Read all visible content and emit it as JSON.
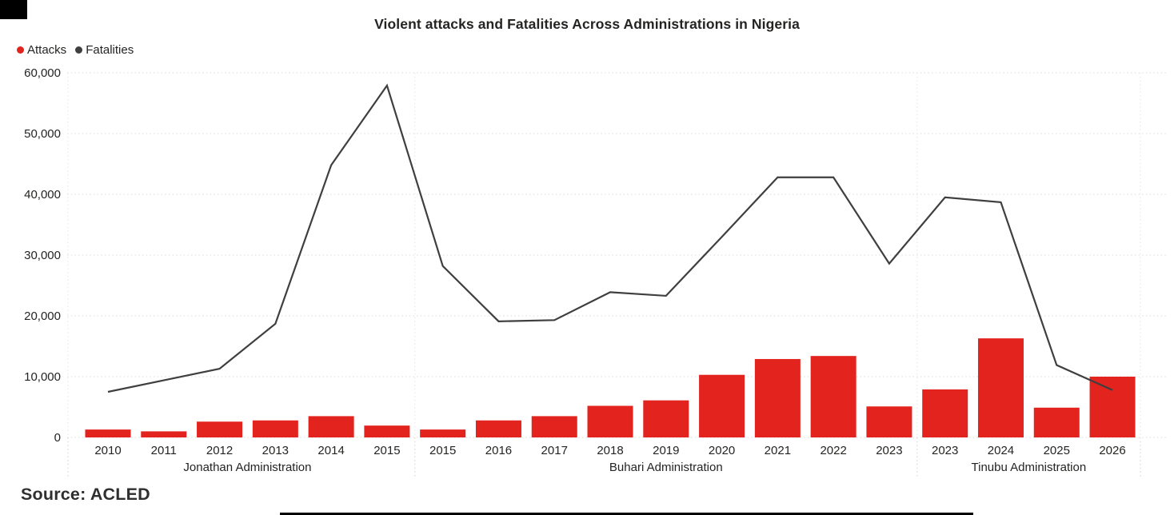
{
  "title": "Violent attacks and Fatalities Across Administrations in Nigeria",
  "source": "Source: ACLED",
  "legend": {
    "items": [
      {
        "label": "Attacks",
        "color": "#E2231E"
      },
      {
        "label": "Fatalities",
        "color": "#3F3F3F"
      }
    ]
  },
  "colors": {
    "bar_red": "#E2231E",
    "line_dark": "#3F3F3F",
    "text_dark": "#252423",
    "gridline": "#DBDBDB",
    "separator": "#E4E4E4",
    "separator_axis": "#CFCFCF"
  },
  "chart_data": {
    "type": "combo-bar-line",
    "title": "Violent attacks and Fatalities Across Administrations in Nigeria",
    "xlabel": "",
    "ylabel": "",
    "ylim": [
      0,
      60000
    ],
    "ytick_values": [
      0,
      10000,
      20000,
      30000,
      40000,
      50000,
      60000
    ],
    "ytick_labels": [
      "0",
      "10,000",
      "20,000",
      "30,000",
      "40,000",
      "50,000",
      "60,000"
    ],
    "grid": "horizontal-dotted",
    "legend_position": "top-left",
    "categories": [
      "2010",
      "2011",
      "2012",
      "2013",
      "2014",
      "2015",
      "2015",
      "2016",
      "2017",
      "2018",
      "2019",
      "2020",
      "2021",
      "2022",
      "2023",
      "2023",
      "2024",
      "2025",
      "2026"
    ],
    "groups": [
      {
        "label": "Jonathan Administration",
        "start": 0,
        "end": 5
      },
      {
        "label": "Buhari Administration",
        "start": 6,
        "end": 14
      },
      {
        "label": "Tinubu Administration",
        "start": 15,
        "end": 18
      }
    ],
    "series": [
      {
        "name": "Attacks",
        "type": "bar",
        "color": "#E2231E",
        "values": [
          1300,
          1000,
          2600,
          2800,
          3500,
          1950,
          1300,
          2800,
          3500,
          5200,
          6100,
          10300,
          12900,
          13400,
          5100,
          7900,
          16300,
          4900,
          10000
        ]
      },
      {
        "name": "Fatalities",
        "type": "line",
        "color": "#3F3F3F",
        "values": [
          7500,
          9400,
          11300,
          18700,
          44800,
          57900,
          28200,
          19100,
          19300,
          23900,
          23300,
          33000,
          42800,
          42800,
          28600,
          39500,
          38700,
          11900,
          7800
        ]
      }
    ]
  }
}
